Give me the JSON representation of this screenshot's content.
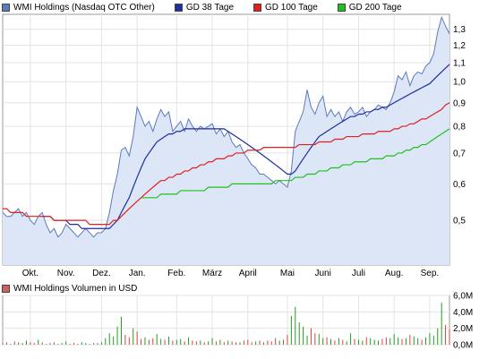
{
  "legend": {
    "items": [
      {
        "label": "WMI Holdings (Nasdaq OTC Other)",
        "color": "#5b7bbd",
        "swatch_fill": "#5b7bbd"
      },
      {
        "label": "GD 38 Tage",
        "color": "#1f2f9e",
        "swatch_fill": "#1f2f9e"
      },
      {
        "label": "GD 100 Tage",
        "color": "#e02020",
        "swatch_fill": "#e02020"
      },
      {
        "label": "GD 200 Tage",
        "color": "#20c020",
        "swatch_fill": "#20c020"
      }
    ]
  },
  "volume_legend": {
    "label": "WMI Holdings Volumen in USD",
    "swatch_fill": "#d06060"
  },
  "chart_data": [
    {
      "type": "line",
      "title": "",
      "scale": "log",
      "y_ticks": [
        "0,5",
        "0,6",
        "0,7",
        "0,8",
        "0,9",
        "1,0",
        "1,1",
        "1,2",
        "1,3"
      ],
      "y_tick_values": [
        0.5,
        0.6,
        0.7,
        0.8,
        0.9,
        1.0,
        1.1,
        1.2,
        1.3
      ],
      "ylim": [
        0.4,
        1.4
      ],
      "x_ticks": [
        "Okt.",
        "Nov.",
        "Dez.",
        "Jan.",
        "Feb.",
        "März",
        "April",
        "Mai",
        "Juni",
        "Juli",
        "Aug.",
        "Sep."
      ],
      "x_tick_index": [
        7,
        16,
        25,
        34,
        44,
        53,
        62,
        72,
        81,
        90,
        99,
        108
      ],
      "grid": true,
      "colors": {
        "price_line": "#5b7bbd",
        "price_fill": "#dde6f6",
        "gd38": "#1f2f9e",
        "gd100": "#e02020",
        "gd200": "#20c020"
      },
      "series": [
        {
          "name": "WMI Holdings (Nasdaq OTC Other)",
          "values": [
            0.52,
            0.51,
            0.51,
            0.52,
            0.53,
            0.51,
            0.52,
            0.5,
            0.49,
            0.51,
            0.52,
            0.49,
            0.47,
            0.48,
            0.46,
            0.47,
            0.49,
            0.48,
            0.47,
            0.46,
            0.47,
            0.48,
            0.47,
            0.46,
            0.47,
            0.47,
            0.48,
            0.52,
            0.58,
            0.63,
            0.71,
            0.72,
            0.69,
            0.76,
            0.88,
            0.84,
            0.8,
            0.82,
            0.78,
            0.83,
            0.87,
            0.84,
            0.86,
            0.78,
            0.8,
            0.82,
            0.78,
            0.83,
            0.8,
            0.78,
            0.8,
            0.79,
            0.8,
            0.81,
            0.77,
            0.79,
            0.76,
            0.78,
            0.74,
            0.72,
            0.73,
            0.7,
            0.68,
            0.66,
            0.65,
            0.63,
            0.63,
            0.62,
            0.61,
            0.6,
            0.61,
            0.6,
            0.59,
            0.64,
            0.78,
            0.82,
            0.86,
            0.96,
            0.88,
            0.85,
            0.9,
            0.93,
            0.84,
            0.87,
            0.84,
            0.86,
            0.82,
            0.86,
            0.88,
            0.85,
            0.86,
            0.88,
            0.84,
            0.86,
            0.87,
            0.89,
            0.88,
            0.87,
            0.9,
            0.95,
            1.03,
            1.01,
            1.05,
            0.98,
            1.03,
            1.05,
            1.04,
            1.08,
            1.1,
            1.15,
            1.28,
            1.38,
            1.32,
            1.27
          ]
        },
        {
          "name": "GD 38 Tage",
          "values": [
            null,
            null,
            null,
            null,
            null,
            null,
            null,
            null,
            null,
            null,
            0.51,
            0.51,
            0.51,
            0.5,
            0.5,
            0.5,
            0.5,
            0.49,
            0.49,
            0.49,
            0.48,
            0.48,
            0.48,
            0.48,
            0.48,
            0.48,
            0.48,
            0.48,
            0.49,
            0.5,
            0.52,
            0.54,
            0.56,
            0.59,
            0.62,
            0.65,
            0.68,
            0.7,
            0.72,
            0.74,
            0.75,
            0.76,
            0.77,
            0.77,
            0.78,
            0.78,
            0.79,
            0.79,
            0.79,
            0.79,
            0.79,
            0.79,
            0.79,
            0.79,
            0.79,
            0.79,
            0.79,
            0.78,
            0.77,
            0.76,
            0.75,
            0.74,
            0.73,
            0.72,
            0.71,
            0.7,
            0.69,
            0.68,
            0.67,
            0.66,
            0.65,
            0.64,
            0.63,
            0.63,
            0.64,
            0.66,
            0.68,
            0.7,
            0.72,
            0.74,
            0.76,
            0.77,
            0.78,
            0.79,
            0.8,
            0.81,
            0.82,
            0.83,
            0.84,
            0.84,
            0.85,
            0.85,
            0.86,
            0.86,
            0.87,
            0.87,
            0.88,
            0.88,
            0.89,
            0.9,
            0.91,
            0.92,
            0.93,
            0.94,
            0.95,
            0.96,
            0.97,
            0.98,
            0.99,
            1.01,
            1.03,
            1.05,
            1.07,
            1.09
          ]
        },
        {
          "name": "GD 100 Tage",
          "values": [
            0.53,
            0.53,
            0.52,
            0.52,
            0.52,
            0.52,
            0.51,
            0.51,
            0.51,
            0.51,
            0.51,
            0.51,
            0.51,
            0.5,
            0.5,
            0.5,
            0.5,
            0.5,
            0.5,
            0.5,
            0.5,
            0.5,
            0.49,
            0.49,
            0.49,
            0.49,
            0.49,
            0.49,
            0.5,
            0.5,
            0.51,
            0.52,
            0.53,
            0.54,
            0.55,
            0.56,
            0.57,
            0.58,
            0.59,
            0.6,
            0.61,
            0.61,
            0.62,
            0.62,
            0.63,
            0.63,
            0.64,
            0.64,
            0.65,
            0.65,
            0.66,
            0.66,
            0.67,
            0.67,
            0.68,
            0.68,
            0.68,
            0.69,
            0.69,
            0.7,
            0.7,
            0.7,
            0.71,
            0.71,
            0.71,
            0.71,
            0.72,
            0.72,
            0.72,
            0.72,
            0.72,
            0.72,
            0.72,
            0.72,
            0.72,
            0.73,
            0.73,
            0.73,
            0.73,
            0.73,
            0.74,
            0.74,
            0.74,
            0.74,
            0.75,
            0.75,
            0.75,
            0.76,
            0.76,
            0.76,
            0.76,
            0.77,
            0.77,
            0.77,
            0.77,
            0.78,
            0.78,
            0.78,
            0.78,
            0.79,
            0.79,
            0.8,
            0.8,
            0.81,
            0.81,
            0.82,
            0.83,
            0.83,
            0.84,
            0.85,
            0.86,
            0.87,
            0.89,
            0.9
          ]
        },
        {
          "name": "GD 200 Tage",
          "values": [
            null,
            null,
            null,
            null,
            null,
            null,
            null,
            null,
            null,
            null,
            null,
            null,
            null,
            null,
            null,
            null,
            null,
            null,
            null,
            null,
            null,
            null,
            null,
            null,
            null,
            null,
            null,
            null,
            null,
            null,
            null,
            null,
            null,
            null,
            null,
            0.56,
            0.56,
            0.56,
            0.56,
            0.56,
            0.57,
            0.57,
            0.57,
            0.57,
            0.57,
            0.58,
            0.58,
            0.58,
            0.58,
            0.58,
            0.58,
            0.58,
            0.59,
            0.59,
            0.59,
            0.59,
            0.59,
            0.59,
            0.6,
            0.6,
            0.6,
            0.6,
            0.6,
            0.6,
            0.6,
            0.6,
            0.6,
            0.6,
            0.6,
            0.61,
            0.61,
            0.61,
            0.61,
            0.61,
            0.62,
            0.62,
            0.62,
            0.63,
            0.63,
            0.63,
            0.64,
            0.64,
            0.64,
            0.65,
            0.65,
            0.65,
            0.66,
            0.66,
            0.66,
            0.67,
            0.67,
            0.67,
            0.67,
            0.68,
            0.68,
            0.68,
            0.68,
            0.69,
            0.69,
            0.69,
            0.7,
            0.7,
            0.71,
            0.71,
            0.72,
            0.72,
            0.73,
            0.73,
            0.74,
            0.75,
            0.76,
            0.77,
            0.78,
            0.79
          ]
        }
      ]
    },
    {
      "type": "bar",
      "title": "WMI Holdings Volumen in USD",
      "y_ticks": [
        "0,0M",
        "2,0M",
        "4,0M",
        "6,0M"
      ],
      "y_tick_values": [
        0,
        2,
        4,
        6
      ],
      "ylim": [
        0,
        6
      ],
      "unit": "M USD",
      "colors": {
        "up": "#20a020",
        "down": "#e04040"
      },
      "series": [
        {
          "name": "Volumen",
          "values": [
            0.2,
            0.3,
            0.1,
            0.4,
            0.3,
            0.2,
            0.5,
            0.3,
            0.2,
            0.6,
            0.3,
            0.1,
            0.2,
            0.3,
            0.1,
            0.2,
            0.4,
            0.1,
            0.2,
            0.1,
            0.3,
            0.2,
            0.1,
            0.2,
            0.2,
            0.3,
            0.8,
            1.4,
            1.0,
            2.2,
            3.4,
            1.2,
            0.9,
            2.0,
            1.6,
            0.7,
            0.9,
            0.6,
            0.8,
            1.3,
            0.7,
            0.6,
            1.0,
            0.5,
            0.6,
            0.7,
            0.4,
            0.9,
            0.5,
            0.4,
            0.5,
            0.3,
            0.4,
            0.8,
            0.4,
            0.6,
            0.3,
            0.5,
            0.4,
            0.3,
            0.3,
            0.5,
            0.6,
            0.3,
            0.4,
            0.5,
            0.3,
            0.5,
            0.4,
            0.8,
            0.5,
            0.6,
            1.2,
            3.5,
            4.6,
            2.7,
            2.2,
            1.1,
            2.0,
            1.4,
            1.3,
            0.8,
            0.9,
            0.7,
            0.5,
            0.8,
            0.6,
            0.4,
            1.4,
            0.7,
            0.6,
            0.5,
            0.9,
            0.8,
            0.6,
            0.5,
            0.7,
            0.9,
            0.8,
            1.3,
            0.9,
            0.7,
            0.8,
            1.2,
            1.0,
            0.8,
            0.6,
            0.9,
            1.4,
            1.1,
            2.0,
            5.1,
            2.4,
            1.9
          ],
          "direction": [
            1,
            0,
            1,
            0,
            1,
            0,
            1,
            0,
            0,
            1,
            0,
            0,
            1,
            0,
            0,
            1,
            1,
            0,
            0,
            0,
            1,
            1,
            0,
            0,
            1,
            1,
            1,
            1,
            1,
            1,
            1,
            0,
            0,
            1,
            0,
            0,
            1,
            0,
            0,
            1,
            1,
            0,
            1,
            0,
            1,
            1,
            0,
            1,
            0,
            0,
            1,
            0,
            1,
            1,
            0,
            1,
            0,
            1,
            0,
            0,
            1,
            0,
            0,
            0,
            1,
            0,
            1,
            0,
            0,
            0,
            1,
            0,
            0,
            1,
            1,
            1,
            1,
            1,
            0,
            0,
            1,
            1,
            0,
            1,
            0,
            1,
            0,
            1,
            1,
            0,
            1,
            1,
            0,
            1,
            1,
            1,
            0,
            0,
            1,
            1,
            1,
            0,
            1,
            0,
            1,
            1,
            0,
            1,
            1,
            1,
            1,
            1,
            0,
            0
          ]
        }
      ]
    }
  ]
}
